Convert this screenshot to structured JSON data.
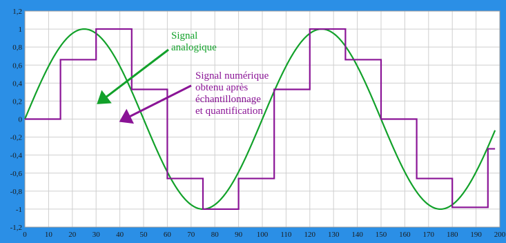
{
  "chart_data": {
    "type": "line",
    "title": "",
    "xlabel": "",
    "ylabel": "",
    "xlim": [
      0,
      200
    ],
    "ylim": [
      -1.2,
      1.2
    ],
    "x_ticks": [
      0,
      10,
      20,
      30,
      40,
      50,
      60,
      70,
      80,
      90,
      100,
      110,
      120,
      130,
      140,
      150,
      160,
      170,
      180,
      190,
      200
    ],
    "y_ticks": [
      1.2,
      1,
      0.8,
      0.6,
      0.4,
      0.2,
      0,
      -0.2,
      -0.4,
      -0.6,
      -0.8,
      -1,
      -1.2
    ],
    "y_tick_labels": [
      "1,2",
      "1",
      "0,8",
      "0,6",
      "0,4",
      "0,2",
      "0",
      "-0,2",
      "-0,4",
      "-0,6",
      "-0,8",
      "-1",
      "-1,2"
    ],
    "grid": true,
    "series": [
      {
        "name": "Signal analogique",
        "kind": "sine",
        "amplitude": 1,
        "period": 100,
        "x_range": [
          0,
          198
        ],
        "color": "#12a12a"
      },
      {
        "name": "Signal numérique obtenu après échantillonnage et quantification",
        "kind": "step",
        "color": "#8a1496",
        "x": [
          0,
          15,
          30,
          45,
          60,
          75,
          90,
          105,
          120,
          135,
          150,
          165,
          180,
          195,
          198
        ],
        "values": [
          0,
          0.66,
          1,
          0.33,
          -0.66,
          -1,
          -0.66,
          0.33,
          1,
          0.66,
          0,
          -0.66,
          -0.98,
          -0.33,
          -0.33
        ]
      }
    ],
    "annotations": [
      {
        "lines": [
          "Signal",
          "analogique"
        ],
        "color": "#12a12a",
        "arrow_to_x": 31,
        "arrow_to_y": 0.18
      },
      {
        "lines": [
          "Signal numérique",
          "obtenu après",
          "échantillonnage",
          "et quantification"
        ],
        "color": "#8a1496",
        "arrow_to_x": 40.5,
        "arrow_to_y": -0.02
      }
    ]
  }
}
